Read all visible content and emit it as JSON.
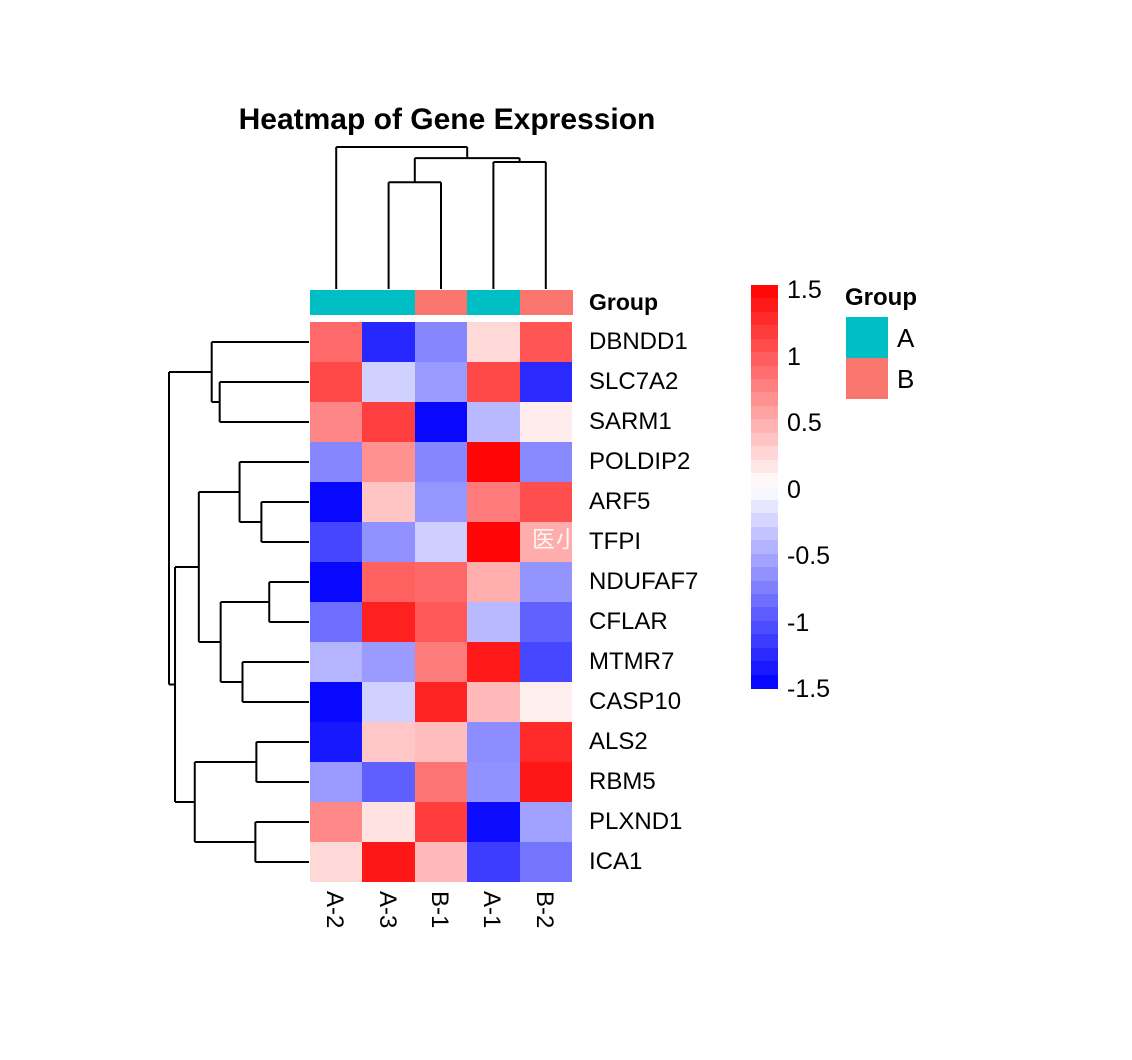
{
  "watermark": {
    "text": "医小"
  },
  "chart_data": {
    "type": "heatmap",
    "title": "Heatmap of Gene Expression",
    "annotation_label": "Group",
    "columns": [
      "A-2",
      "A-3",
      "B-1",
      "A-1",
      "B-2"
    ],
    "col_groups": [
      "A",
      "A",
      "B",
      "A",
      "B"
    ],
    "group_colors": {
      "A": "#00BFC4",
      "B": "#F8766D"
    },
    "rows": [
      "DBNDD1",
      "SLC7A2",
      "SARM1",
      "POLDIP2",
      "ARF5",
      "TFPI",
      "NDUFAF7",
      "CFLAR",
      "MTMR7",
      "CASP10",
      "ALS2",
      "RBM5",
      "PLXND1",
      "ICA1"
    ],
    "values": [
      [
        0.88,
        -1.27,
        -0.71,
        0.23,
        1.0
      ],
      [
        1.07,
        -0.27,
        -0.59,
        1.07,
        -1.25
      ],
      [
        0.71,
        1.13,
        -1.45,
        -0.41,
        0.11
      ],
      [
        -0.71,
        0.65,
        -0.71,
        1.47,
        -0.7
      ],
      [
        -1.45,
        0.35,
        -0.62,
        0.78,
        1.04
      ],
      [
        -1.09,
        -0.65,
        -0.28,
        1.47,
        0.49
      ],
      [
        -1.45,
        0.93,
        0.89,
        0.48,
        -0.63
      ],
      [
        -0.85,
        1.31,
        0.98,
        -0.41,
        -0.93
      ],
      [
        -0.44,
        -0.59,
        0.77,
        1.35,
        -1.08
      ],
      [
        -1.45,
        -0.27,
        1.29,
        0.41,
        0.1
      ],
      [
        -1.36,
        0.33,
        0.39,
        -0.67,
        1.25
      ],
      [
        -0.59,
        -0.94,
        0.82,
        -0.65,
        1.37
      ],
      [
        0.7,
        0.17,
        1.14,
        -1.43,
        -0.56
      ],
      [
        0.23,
        1.37,
        0.41,
        -1.14,
        -0.82
      ]
    ],
    "colorscale": {
      "min": -1.5,
      "max": 1.5,
      "low": "#0000FF",
      "mid": "#FFFFFF",
      "high": "#FF0000",
      "ticks": [
        "1.5",
        "1",
        "0.5",
        "0",
        "-0.5",
        "-1",
        "-1.5"
      ]
    },
    "legend": {
      "title": "Group",
      "items": [
        {
          "label": "A",
          "color": "#00BFC4"
        },
        {
          "label": "B",
          "color": "#F8766D"
        }
      ]
    },
    "col_dendrogram": {
      "h": 1.0,
      "children": [
        {
          "leaf": "A-2"
        },
        {
          "h": 0.922,
          "children": [
            {
              "h": 0.752,
              "children": [
                {
                  "leaf": "A-3"
                },
                {
                  "leaf": "B-1"
                }
              ]
            },
            {
              "h": 0.894,
              "children": [
                {
                  "leaf": "A-1"
                },
                {
                  "leaf": "B-2"
                }
              ]
            }
          ]
        }
      ]
    },
    "row_dendrogram": {
      "h": 1.0,
      "children": [
        {
          "h": 0.695,
          "children": [
            {
              "leaf": "DBNDD1"
            },
            {
              "h": 0.638,
              "children": [
                {
                  "leaf": "SLC7A2"
                },
                {
                  "leaf": "SARM1"
                }
              ]
            }
          ]
        },
        {
          "h": 0.957,
          "children": [
            {
              "h": 0.787,
              "children": [
                {
                  "h": 0.496,
                  "children": [
                    {
                      "leaf": "POLDIP2"
                    },
                    {
                      "h": 0.34,
                      "children": [
                        {
                          "leaf": "ARF5"
                        },
                        {
                          "leaf": "TFPI"
                        }
                      ]
                    }
                  ]
                },
                {
                  "h": 0.631,
                  "children": [
                    {
                      "h": 0.284,
                      "children": [
                        {
                          "leaf": "NDUFAF7"
                        },
                        {
                          "leaf": "CFLAR"
                        }
                      ]
                    },
                    {
                      "h": 0.475,
                      "children": [
                        {
                          "leaf": "MTMR7"
                        },
                        {
                          "leaf": "CASP10"
                        }
                      ]
                    }
                  ]
                }
              ]
            },
            {
              "h": 0.816,
              "children": [
                {
                  "h": 0.376,
                  "children": [
                    {
                      "leaf": "ALS2"
                    },
                    {
                      "leaf": "RBM5"
                    }
                  ]
                },
                {
                  "h": 0.383,
                  "children": [
                    {
                      "leaf": "PLXND1"
                    },
                    {
                      "leaf": "ICA1"
                    }
                  ]
                }
              ]
            }
          ]
        }
      ]
    }
  }
}
